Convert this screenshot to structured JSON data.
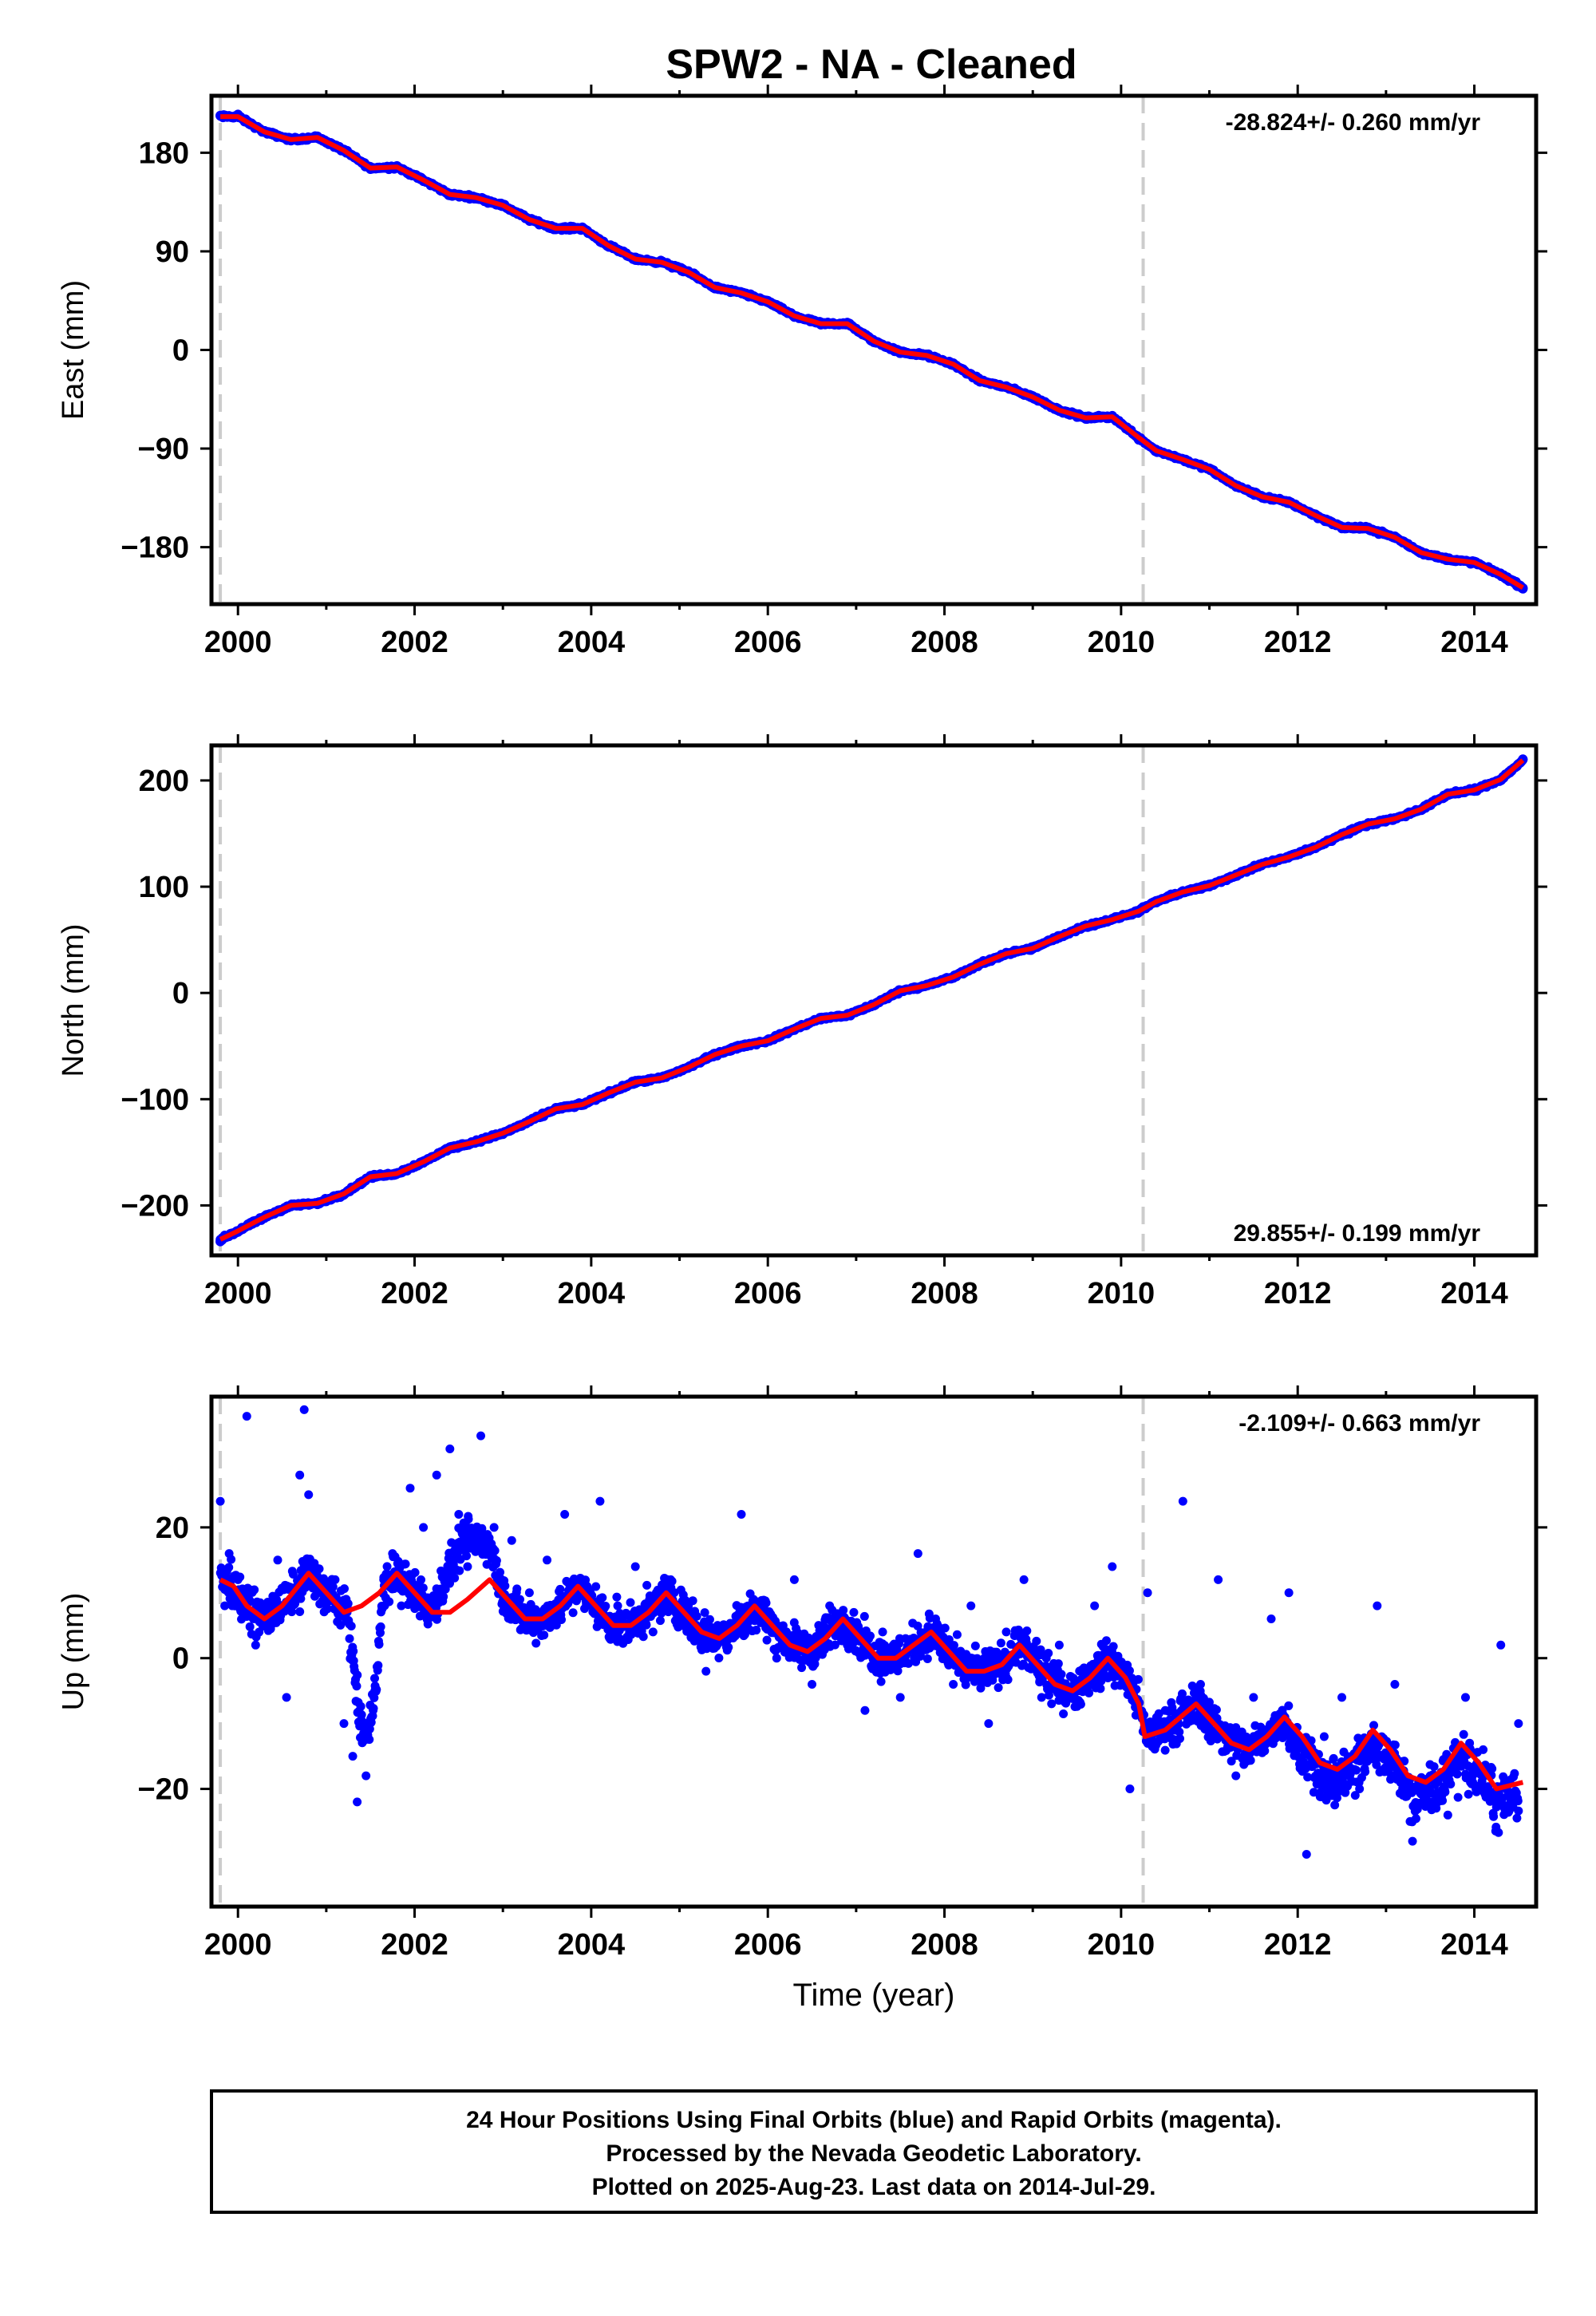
{
  "title": "SPW2  - NA - Cleaned",
  "colors": {
    "daily_points": "#0000ff",
    "model_fit": "#ff0000",
    "event_line": "#cccccc",
    "frame": "#000000"
  },
  "chart_data": [
    {
      "type": "scatter",
      "component": "east",
      "ylabel": "East (mm)",
      "xlabel": "",
      "xlim": [
        1999.7,
        2014.7
      ],
      "ylim": [
        -232,
        232
      ],
      "xticks": [
        "2000",
        "2002",
        "2004",
        "2006",
        "2008",
        "2010",
        "2012",
        "2014"
      ],
      "yticks": [
        "180",
        "90",
        "0",
        "−90",
        "−180"
      ],
      "ytick_values": [
        180,
        90,
        0,
        -90,
        -180
      ],
      "rate_label": "-28.824+/- 0.260 mm/yr",
      "rate_position": "top-right",
      "event_lines": [
        1999.8,
        2010.25
      ],
      "series": [
        {
          "name": "",
          "kind": "scatter",
          "x": [
            1999.8,
            2000.0,
            2000.3,
            2000.6,
            2000.9,
            2001.2,
            2001.5,
            2001.8,
            2002.1,
            2002.4,
            2002.7,
            2003.0,
            2003.3,
            2003.6,
            2003.9,
            2004.2,
            2004.5,
            2004.8,
            2005.1,
            2005.4,
            2005.7,
            2006.0,
            2006.3,
            2006.6,
            2006.9,
            2007.2,
            2007.5,
            2007.8,
            2008.1,
            2008.4,
            2008.7,
            2009.0,
            2009.3,
            2009.6,
            2009.9,
            2010.2,
            2010.4,
            2010.7,
            2011.0,
            2011.3,
            2011.6,
            2011.9,
            2012.2,
            2012.5,
            2012.8,
            2013.1,
            2013.4,
            2013.7,
            2014.0,
            2014.3,
            2014.55
          ],
          "y": [
            214,
            215,
            200,
            191,
            195,
            183,
            165,
            168,
            154,
            141,
            139,
            133,
            118,
            110,
            112,
            94,
            82,
            81,
            72,
            56,
            52,
            45,
            30,
            23,
            25,
            7,
            -3,
            -4,
            -12,
            -29,
            -33,
            -42,
            -55,
            -63,
            -60,
            -82,
            -92,
            -100,
            -108,
            -124,
            -135,
            -138,
            -150,
            -163,
            -162,
            -170,
            -185,
            -192,
            -193,
            -205,
            -218
          ]
        },
        {
          "name": "",
          "kind": "line",
          "x": [
            1999.8,
            2000.0,
            2000.3,
            2000.6,
            2000.9,
            2001.2,
            2001.5,
            2001.8,
            2002.1,
            2002.4,
            2002.7,
            2003.0,
            2003.3,
            2003.6,
            2003.9,
            2004.2,
            2004.5,
            2004.8,
            2005.1,
            2005.4,
            2005.7,
            2006.0,
            2006.3,
            2006.6,
            2006.9,
            2007.2,
            2007.5,
            2007.8,
            2008.1,
            2008.4,
            2008.7,
            2009.0,
            2009.3,
            2009.6,
            2009.9,
            2010.2,
            2010.4,
            2010.7,
            2011.0,
            2011.3,
            2011.6,
            2011.9,
            2012.2,
            2012.5,
            2012.8,
            2013.1,
            2013.4,
            2013.7,
            2014.0,
            2014.3,
            2014.55
          ],
          "y": [
            213,
            213,
            199,
            192,
            194,
            182,
            166,
            167,
            155,
            142,
            139,
            132,
            119,
            111,
            111,
            95,
            83,
            80,
            71,
            57,
            52,
            44,
            31,
            24,
            24,
            8,
            -2,
            -5,
            -13,
            -28,
            -34,
            -43,
            -55,
            -62,
            -61,
            -80,
            -92,
            -100,
            -109,
            -124,
            -134,
            -139,
            -151,
            -162,
            -163,
            -171,
            -185,
            -191,
            -194,
            -205,
            -217
          ]
        }
      ]
    },
    {
      "type": "scatter",
      "component": "north",
      "ylabel": "North (mm)",
      "xlabel": "",
      "xlim": [
        1999.7,
        2014.7
      ],
      "ylim": [
        -247,
        233
      ],
      "xticks": [
        "2000",
        "2002",
        "2004",
        "2006",
        "2008",
        "2010",
        "2012",
        "2014"
      ],
      "yticks": [
        "200",
        "100",
        "0",
        "−100",
        "−200"
      ],
      "ytick_values": [
        200,
        100,
        0,
        -100,
        -200
      ],
      "rate_label": "29.855+/- 0.199 mm/yr",
      "rate_position": "bottom-right",
      "event_lines": [
        1999.8,
        2010.25
      ],
      "series": [
        {
          "name": "",
          "kind": "scatter",
          "x": [
            1999.8,
            2000.0,
            2000.3,
            2000.6,
            2000.9,
            2001.2,
            2001.5,
            2001.8,
            2002.1,
            2002.4,
            2002.7,
            2003.0,
            2003.3,
            2003.6,
            2003.9,
            2004.2,
            2004.5,
            2004.8,
            2005.1,
            2005.4,
            2005.7,
            2006.0,
            2006.3,
            2006.6,
            2006.9,
            2007.2,
            2007.5,
            2007.8,
            2008.1,
            2008.4,
            2008.7,
            2009.0,
            2009.3,
            2009.6,
            2009.9,
            2010.2,
            2010.4,
            2010.7,
            2011.0,
            2011.3,
            2011.6,
            2011.9,
            2012.2,
            2012.5,
            2012.8,
            2013.1,
            2013.4,
            2013.7,
            2014.0,
            2014.3,
            2014.55
          ],
          "y": [
            -234,
            -225,
            -212,
            -201,
            -199,
            -190,
            -172,
            -170,
            -160,
            -145,
            -140,
            -133,
            -120,
            -108,
            -105,
            -95,
            -85,
            -80,
            -70,
            -57,
            -50,
            -44,
            -35,
            -24,
            -20,
            -12,
            2,
            8,
            14,
            28,
            38,
            42,
            52,
            63,
            70,
            76,
            85,
            96,
            100,
            110,
            122,
            128,
            136,
            150,
            160,
            164,
            172,
            188,
            190,
            200,
            220
          ]
        },
        {
          "name": "",
          "kind": "line",
          "x": [
            1999.8,
            2000.0,
            2000.3,
            2000.6,
            2000.9,
            2001.2,
            2001.5,
            2001.8,
            2002.1,
            2002.4,
            2002.7,
            2003.0,
            2003.3,
            2003.6,
            2003.9,
            2004.2,
            2004.5,
            2004.8,
            2005.1,
            2005.4,
            2005.7,
            2006.0,
            2006.3,
            2006.6,
            2006.9,
            2007.2,
            2007.5,
            2007.8,
            2008.1,
            2008.4,
            2008.7,
            2009.0,
            2009.3,
            2009.6,
            2009.9,
            2010.2,
            2010.4,
            2010.7,
            2011.0,
            2011.3,
            2011.6,
            2011.9,
            2012.2,
            2012.5,
            2012.8,
            2013.1,
            2013.4,
            2013.7,
            2014.0,
            2014.3,
            2014.55
          ],
          "y": [
            -232,
            -224,
            -211,
            -200,
            -198,
            -189,
            -173,
            -170,
            -159,
            -146,
            -140,
            -132,
            -121,
            -109,
            -105,
            -94,
            -84,
            -80,
            -70,
            -58,
            -50,
            -45,
            -34,
            -24,
            -21,
            -11,
            2,
            7,
            15,
            27,
            37,
            42,
            53,
            63,
            69,
            77,
            86,
            95,
            101,
            111,
            121,
            128,
            137,
            149,
            159,
            164,
            173,
            187,
            191,
            201,
            219
          ]
        }
      ]
    },
    {
      "type": "scatter",
      "component": "up",
      "ylabel": "Up (mm)",
      "xlabel": "Time (year)",
      "xlim": [
        1999.7,
        2014.7
      ],
      "ylim": [
        -38,
        40
      ],
      "xticks": [
        "2000",
        "2002",
        "2004",
        "2006",
        "2008",
        "2010",
        "2012",
        "2014"
      ],
      "yticks": [
        "20",
        "0",
        "−20"
      ],
      "ytick_values": [
        20,
        0,
        -20
      ],
      "rate_label": "-2.109+/- 0.663 mm/yr",
      "rate_position": "top-right",
      "event_lines": [
        1999.8,
        2010.25
      ],
      "series": [
        {
          "name": "",
          "kind": "scatter",
          "x": [
            1999.8,
            1999.85,
            1999.9,
            2000.0,
            2000.1,
            2000.2,
            2000.3,
            2000.45,
            2000.55,
            2000.7,
            2000.75,
            2000.8,
            2000.9,
            2001.0,
            2001.1,
            2001.2,
            2001.3,
            2001.35,
            2001.45,
            2001.55,
            2001.65,
            2001.75,
            2001.85,
            2001.95,
            2002.1,
            2002.25,
            2002.4,
            2002.5,
            2002.6,
            2002.75,
            2002.9,
            2003.1,
            2003.3,
            2003.5,
            2003.7,
            2003.9,
            2004.1,
            2004.3,
            2004.5,
            2004.7,
            2004.9,
            2005.1,
            2005.3,
            2005.5,
            2005.7,
            2005.9,
            2006.1,
            2006.3,
            2006.5,
            2006.7,
            2006.9,
            2007.1,
            2007.3,
            2007.5,
            2007.7,
            2007.9,
            2008.1,
            2008.3,
            2008.5,
            2008.7,
            2008.9,
            2009.1,
            2009.3,
            2009.5,
            2009.7,
            2009.9,
            2010.1,
            2010.3,
            2010.5,
            2010.7,
            2010.9,
            2011.1,
            2011.3,
            2011.5,
            2011.7,
            2011.9,
            2012.1,
            2012.3,
            2012.5,
            2012.7,
            2012.9,
            2013.1,
            2013.3,
            2013.5,
            2013.7,
            2013.9,
            2014.1,
            2014.3,
            2014.5
          ],
          "y": [
            24,
            8,
            16,
            12,
            37,
            2,
            8,
            15,
            -6,
            28,
            38,
            25,
            10,
            8,
            12,
            -10,
            -15,
            -22,
            -18,
            -5,
            12,
            16,
            8,
            26,
            20,
            28,
            32,
            22,
            14,
            34,
            20,
            18,
            10,
            15,
            22,
            12,
            24,
            8,
            14,
            4,
            12,
            8,
            -2,
            5,
            22,
            6,
            0,
            12,
            -4,
            8,
            2,
            -8,
            4,
            -6,
            16,
            6,
            -4,
            8,
            -10,
            4,
            12,
            -6,
            2,
            -4,
            8,
            14,
            -20,
            10,
            -8,
            24,
            -4,
            12,
            -18,
            -6,
            6,
            10,
            -30,
            -12,
            -6,
            -20,
            8,
            -4,
            -28,
            -18,
            -24,
            -6,
            -14,
            2,
            -10
          ]
        },
        {
          "name": "",
          "kind": "line",
          "x": [
            1999.8,
            1999.95,
            2000.1,
            2000.3,
            2000.5,
            2000.8,
            2001.0,
            2001.2,
            2001.4,
            2001.6,
            2001.8,
            2002.0,
            2002.2,
            2002.4,
            2002.6,
            2002.85,
            2003.05,
            2003.25,
            2003.45,
            2003.65,
            2003.85,
            2004.05,
            2004.25,
            2004.45,
            2004.65,
            2004.85,
            2005.05,
            2005.25,
            2005.45,
            2005.65,
            2005.85,
            2006.05,
            2006.25,
            2006.45,
            2006.65,
            2006.85,
            2007.05,
            2007.25,
            2007.45,
            2007.65,
            2007.85,
            2008.05,
            2008.25,
            2008.45,
            2008.65,
            2008.85,
            2009.05,
            2009.25,
            2009.45,
            2009.65,
            2009.85,
            2010.05,
            2010.2,
            2010.27,
            2010.5,
            2010.85,
            2011.05,
            2011.25,
            2011.45,
            2011.65,
            2011.85,
            2012.05,
            2012.25,
            2012.45,
            2012.65,
            2012.85,
            2013.05,
            2013.25,
            2013.45,
            2013.65,
            2013.85,
            2014.05,
            2014.25,
            2014.55
          ],
          "y": [
            12,
            11,
            8,
            6,
            8,
            13,
            10,
            7,
            8,
            10,
            13,
            10,
            7,
            7,
            9,
            12,
            9,
            6,
            6,
            8,
            11,
            8,
            5,
            5,
            7,
            10,
            7,
            4,
            3,
            5,
            8,
            5,
            2,
            1,
            3,
            6,
            3,
            0,
            0,
            2,
            4,
            1,
            -2,
            -2,
            -1,
            2,
            -1,
            -4,
            -5,
            -3,
            0,
            -3,
            -7,
            -12,
            -11,
            -7,
            -10,
            -13,
            -14,
            -12,
            -9,
            -12,
            -16,
            -17,
            -15,
            -11,
            -14,
            -18,
            -19,
            -17,
            -13,
            -16,
            -20,
            -19
          ]
        }
      ]
    }
  ],
  "footer": {
    "line1": "24 Hour Positions Using Final Orbits (blue) and Rapid Orbits (magenta).",
    "line2": "Processed by the Nevada Geodetic Laboratory.",
    "line3": "Plotted on 2025-Aug-23. Last data on 2014-Jul-29."
  }
}
